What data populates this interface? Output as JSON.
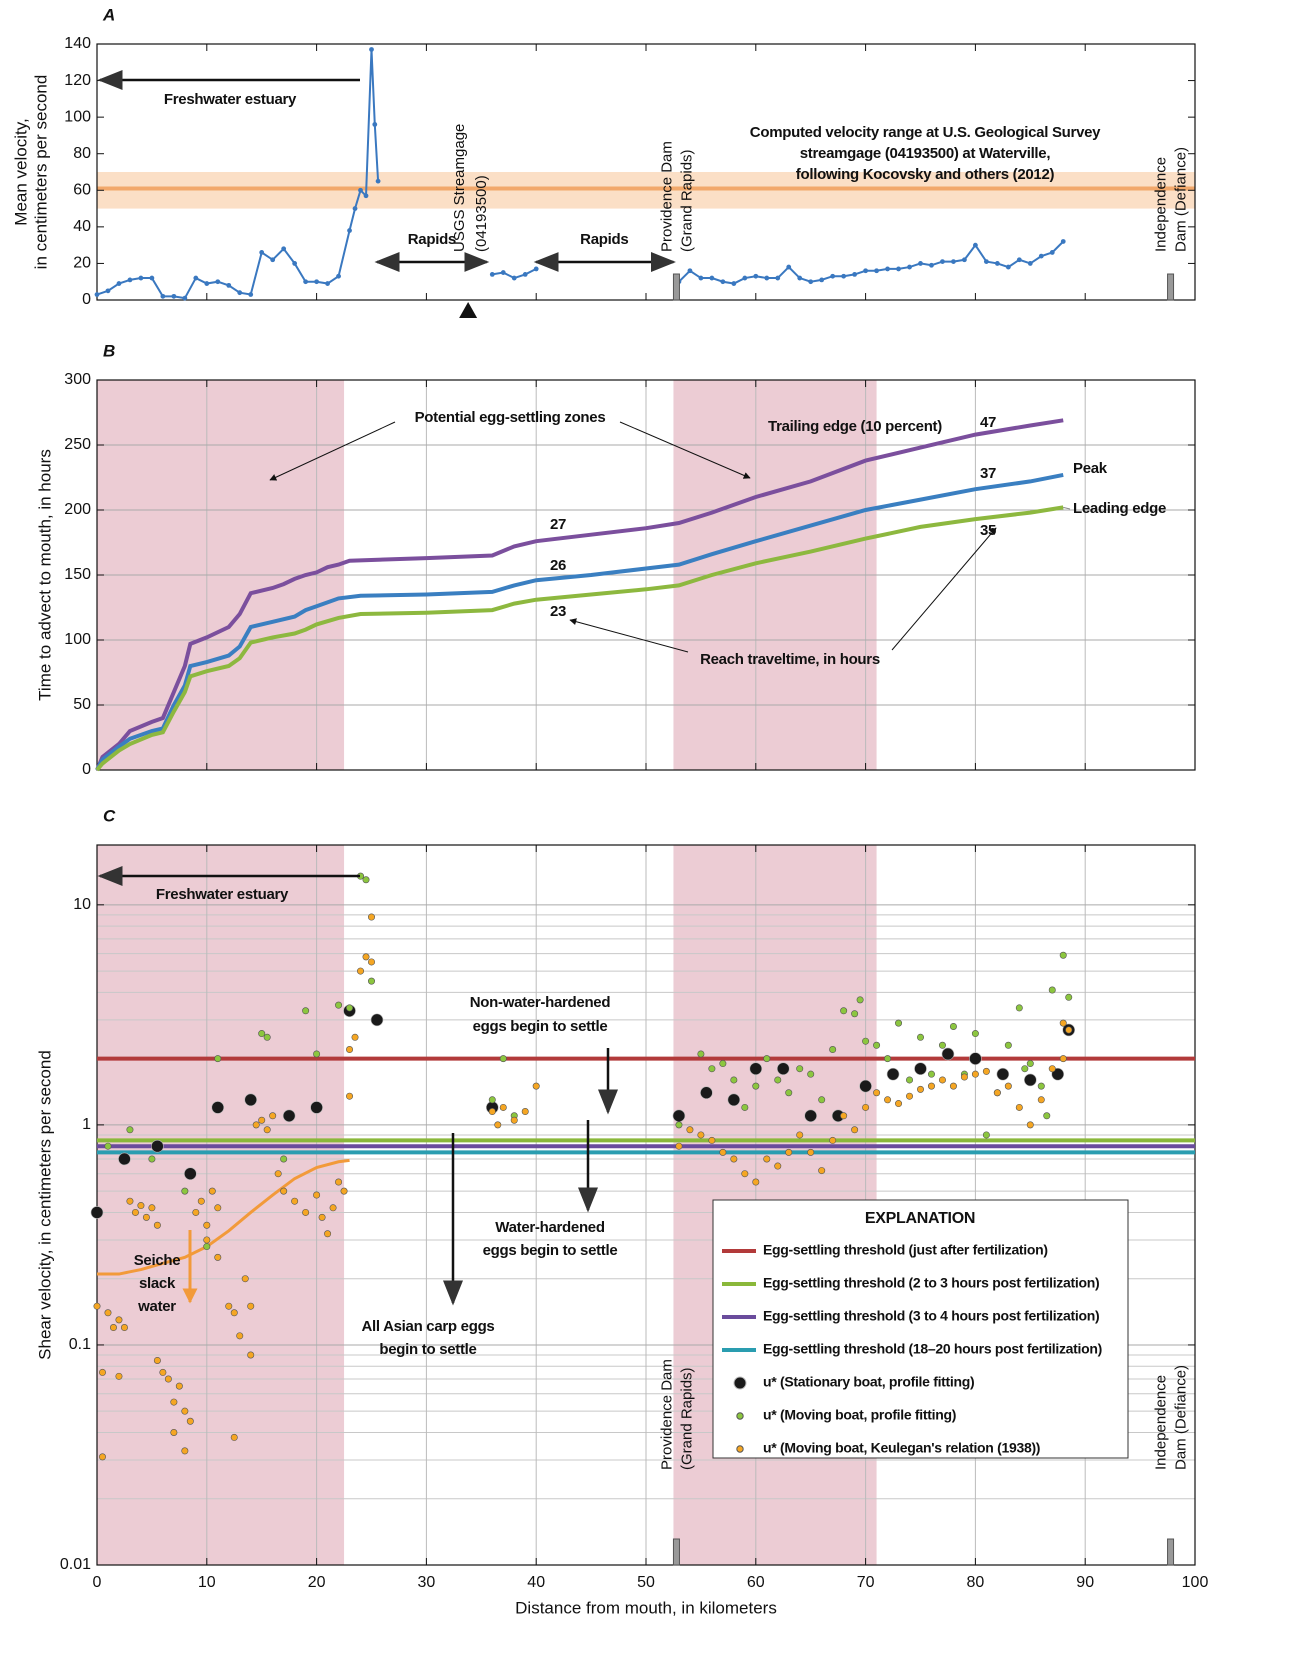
{
  "chart_data": [
    {
      "type": "line",
      "panel_label": "A",
      "ylabel": [
        "Mean velocity,",
        "in centimeters per second"
      ],
      "xlim": [
        0,
        100
      ],
      "xticks": [
        0,
        10,
        20,
        30,
        40,
        50,
        60,
        70,
        80,
        90,
        100
      ],
      "xtick_labels": false,
      "ylim": [
        0,
        140
      ],
      "yticks": [
        0,
        20,
        40,
        60,
        80,
        100,
        120,
        140
      ],
      "grid": false,
      "band": {
        "low": 50,
        "high": 70,
        "mid": 61,
        "color": "#f8c9a0",
        "mid_color": "#f2a86b"
      },
      "series": [
        {
          "name": "Mean velocity",
          "color": "#3a78c0",
          "x": [
            0,
            1,
            2,
            3,
            4,
            5,
            6,
            7,
            8,
            9,
            10,
            11,
            12,
            13,
            14,
            15,
            16,
            17,
            18,
            19,
            20,
            21,
            22,
            23,
            23.5,
            24,
            24.5,
            25,
            25.3,
            25.6,
            30,
            36,
            37,
            38,
            39,
            40,
            46,
            53,
            54,
            55,
            56,
            57,
            58,
            59,
            60,
            61,
            62,
            63,
            64,
            65,
            66,
            67,
            68,
            69,
            70,
            71,
            72,
            73,
            74,
            75,
            76,
            77,
            78,
            79,
            80,
            81,
            82,
            83,
            84,
            85,
            86,
            87,
            88
          ],
          "values": [
            3,
            5,
            9,
            11,
            12,
            12,
            2,
            2,
            1,
            12,
            9,
            10,
            8,
            4,
            3,
            26,
            22,
            28,
            20,
            10,
            10,
            9,
            13,
            38,
            50,
            60,
            57,
            137,
            96,
            65,
            null,
            14,
            15,
            12,
            14,
            17,
            null,
            10,
            16,
            12,
            12,
            10,
            9,
            12,
            13,
            12,
            12,
            18,
            12,
            10,
            11,
            13,
            13,
            14,
            16,
            16,
            17,
            17,
            18,
            20,
            19,
            21,
            21,
            22,
            30,
            21,
            20,
            18,
            22,
            20,
            24,
            26,
            32
          ]
        }
      ],
      "annotations": {
        "estuary": "Freshwater estuary",
        "rapids": [
          "Rapids",
          "Rapids"
        ],
        "gage": [
          "USGS Streamgage",
          "(04193500)"
        ],
        "gage_x": 33.8,
        "band_note": [
          "Computed velocity range at U.S. Geological Survey",
          "streamgage (04193500) at Waterville,",
          "following Kocovsky and others (2012)"
        ]
      },
      "dams": [
        {
          "lines": [
            "Providence Dam",
            "(Grand Rapids)"
          ],
          "x": 52.5
        },
        {
          "lines": [
            "Independence",
            "Dam (Defiance)"
          ],
          "x": 97.5
        }
      ]
    },
    {
      "type": "line",
      "panel_label": "B",
      "ylabel": [
        "Time to advect to mouth, in hours"
      ],
      "xlim": [
        0,
        100
      ],
      "xticks": [
        0,
        10,
        20,
        30,
        40,
        50,
        60,
        70,
        80,
        90,
        100
      ],
      "xtick_labels": false,
      "ylim": [
        0,
        300
      ],
      "yticks": [
        0,
        50,
        100,
        150,
        200,
        250,
        300
      ],
      "grid": true,
      "zones": [
        [
          0,
          22.5
        ],
        [
          52.5,
          71
        ]
      ],
      "zone_color": "#ecccd4",
      "zone_note": "Potential egg-settling zones",
      "series": [
        {
          "name": "Trailing edge (10 percent)",
          "color": "#7b4f9d",
          "x": [
            0,
            0.5,
            2,
            3,
            5,
            6,
            7,
            8,
            8.5,
            10,
            12,
            13,
            14,
            16,
            17,
            18,
            19,
            20,
            21,
            22,
            23,
            30,
            36,
            38,
            40,
            45,
            50,
            53,
            56,
            60,
            65,
            70,
            75,
            80,
            85,
            88
          ],
          "values": [
            0,
            10,
            20,
            30,
            37,
            40,
            60,
            80,
            97,
            102,
            110,
            120,
            136,
            140,
            143,
            147,
            150,
            152,
            156,
            158,
            161,
            163,
            165,
            172,
            176,
            181,
            186,
            190,
            198,
            210,
            222,
            238,
            248,
            258,
            265,
            269
          ]
        },
        {
          "name": "Peak",
          "color": "#3a7fc1",
          "x": [
            0,
            0.5,
            2,
            3,
            5,
            6,
            7,
            8,
            8.5,
            10,
            12,
            13,
            14,
            16,
            18,
            19,
            20,
            22,
            24,
            30,
            36,
            38,
            40,
            45,
            50,
            53,
            56,
            60,
            65,
            70,
            75,
            80,
            85,
            88
          ],
          "values": [
            0,
            8,
            18,
            24,
            30,
            32,
            50,
            65,
            80,
            83,
            88,
            95,
            110,
            114,
            118,
            123,
            126,
            132,
            134,
            135,
            137,
            142,
            146,
            150,
            155,
            158,
            166,
            176,
            188,
            200,
            208,
            216,
            222,
            227
          ]
        },
        {
          "name": "Leading edge",
          "color": "#8db83f",
          "x": [
            0,
            0.5,
            2,
            3,
            5,
            6,
            7,
            8,
            8.5,
            10,
            12,
            13,
            14,
            16,
            18,
            19,
            20,
            22,
            24,
            30,
            36,
            38,
            40,
            45,
            50,
            53,
            56,
            60,
            65,
            70,
            75,
            80,
            85,
            88
          ],
          "values": [
            0,
            5,
            15,
            20,
            27,
            29,
            45,
            60,
            72,
            76,
            80,
            86,
            98,
            102,
            105,
            108,
            112,
            117,
            120,
            121,
            123,
            128,
            131,
            135,
            139,
            142,
            150,
            159,
            168,
            178,
            187,
            193,
            198,
            202
          ]
        }
      ],
      "reach_times": [
        27,
        26,
        23,
        47,
        37,
        35
      ],
      "reach_note": "Reach traveltime, in hours"
    },
    {
      "type": "scatter",
      "panel_label": "C",
      "ylabel": [
        "Shear velocity, in centimeters per second"
      ],
      "xlabel": "Distance from mouth, in kilometers",
      "xlim": [
        0,
        100
      ],
      "xticks": [
        0,
        10,
        20,
        30,
        40,
        50,
        60,
        70,
        80,
        90,
        100
      ],
      "xtick_labels": true,
      "log_y": true,
      "ylim": [
        0.01,
        18.7
      ],
      "yticks": [
        0.01,
        0.1,
        1,
        10
      ],
      "yminorticks": [
        0.02,
        0.03,
        0.04,
        0.05,
        0.06,
        0.07,
        0.08,
        0.09,
        0.2,
        0.3,
        0.4,
        0.5,
        0.6,
        0.7,
        0.8,
        0.9,
        2,
        3,
        4,
        5,
        6,
        7,
        8,
        9
      ],
      "grid": true,
      "zones": [
        [
          0,
          22.5
        ],
        [
          52.5,
          71
        ]
      ],
      "zone_color": "#ecccd4",
      "legend_title": "EXPLANATION",
      "legend": "lower right",
      "series": [
        {
          "name": "Egg-settling threshold (just after fertilization)",
          "kind": "hline",
          "color": "#b23a3a",
          "values": [
            2
          ]
        },
        {
          "name": "Egg-settling threshold (2 to 3 hours post fertilization)",
          "kind": "hline",
          "color": "#8ab83a",
          "values": [
            0.85
          ]
        },
        {
          "name": "Egg-settling threshold (3 to 4 hours post fertilization)",
          "kind": "hline",
          "color": "#6a4c9c",
          "values": [
            0.8
          ]
        },
        {
          "name": "Egg-settling threshold (18–20 hours post fertilization)",
          "kind": "hline",
          "color": "#2a9db0",
          "values": [
            0.75
          ]
        },
        {
          "name": "u* (Stationary boat, profile fitting)",
          "kind": "point",
          "color": "#1a1a1a",
          "size": 6,
          "x": [
            0,
            2.5,
            5.5,
            8.5,
            11,
            14,
            17.5,
            20,
            23,
            25.5,
            36,
            53,
            55.5,
            58,
            60,
            62.5,
            65,
            67.5,
            70,
            72.5,
            75,
            77.5,
            80,
            82.5,
            85,
            87.5,
            88.5
          ],
          "values": [
            0.4,
            0.7,
            0.8,
            0.6,
            1.2,
            1.3,
            1.1,
            1.2,
            3.3,
            3,
            1.2,
            1.1,
            1.4,
            1.3,
            1.8,
            1.8,
            1.1,
            1.1,
            1.5,
            1.7,
            1.8,
            2.1,
            2,
            1.7,
            1.6,
            1.7,
            2.7
          ]
        },
        {
          "name": "u* (Moving boat, profile fitting)",
          "kind": "point",
          "color": "#8cc63f",
          "size": 3.2,
          "x": [
            1,
            3,
            5,
            8,
            10,
            11,
            15,
            15.5,
            17,
            19,
            20,
            22,
            23,
            24,
            24.5,
            25,
            37,
            36,
            38,
            53,
            55,
            56,
            57,
            58,
            59,
            60,
            61,
            62,
            63,
            64,
            65,
            66,
            67,
            68,
            69,
            69.5,
            70,
            71,
            72,
            73,
            74,
            75,
            76,
            77,
            78,
            79,
            80,
            81,
            82,
            83,
            84,
            85,
            86,
            87,
            88,
            88.5,
            86.5,
            84.5
          ],
          "values": [
            0.8,
            0.95,
            0.7,
            0.5,
            0.28,
            2,
            2.6,
            2.5,
            0.7,
            3.3,
            2.1,
            3.5,
            3.4,
            13.5,
            13,
            4.5,
            2,
            1.3,
            1.1,
            1,
            2.1,
            1.8,
            1.9,
            1.6,
            1.2,
            1.5,
            2,
            1.6,
            1.4,
            1.8,
            1.7,
            1.3,
            2.2,
            3.3,
            3.2,
            3.7,
            2.4,
            2.3,
            2,
            2.9,
            1.6,
            2.5,
            1.7,
            2.3,
            2.8,
            1.7,
            2.6,
            0.9,
            1.4,
            2.3,
            3.4,
            1.9,
            1.5,
            4.1,
            5.9,
            3.8,
            1.1,
            1.8
          ]
        },
        {
          "name": "u* (Moving boat, Keulegan's relation (1938))",
          "kind": "point",
          "color": "#f5a623",
          "size": 3.2,
          "x": [
            0,
            0.5,
            0.5,
            1,
            1.5,
            2,
            2,
            2.5,
            3,
            3.5,
            4,
            4.5,
            5,
            5.5,
            5.5,
            6,
            6.5,
            7,
            7,
            7.5,
            8,
            8,
            8.5,
            9,
            9.5,
            10,
            10,
            10.5,
            11,
            11,
            12,
            12.5,
            12.5,
            13,
            13.5,
            14,
            14,
            14.5,
            15,
            15.5,
            16,
            16.5,
            17,
            18,
            19,
            20,
            20.5,
            21,
            21.5,
            22,
            22.5,
            23,
            23,
            23.5,
            24,
            24.5,
            25,
            25,
            36,
            36.5,
            37,
            38,
            39,
            40,
            53,
            54,
            55,
            56,
            57,
            58,
            59,
            60,
            61,
            62,
            63,
            64,
            65,
            66,
            67,
            68,
            69,
            70,
            71,
            72,
            73,
            74,
            75,
            76,
            77,
            78,
            79,
            80,
            81,
            82,
            83,
            84,
            85,
            86,
            87,
            88,
            88.5,
            88
          ],
          "values": [
            0.15,
            0.075,
            0.031,
            0.14,
            0.12,
            0.072,
            0.13,
            0.12,
            0.45,
            0.4,
            0.43,
            0.38,
            0.42,
            0.35,
            0.085,
            0.075,
            0.07,
            0.055,
            0.04,
            0.065,
            0.05,
            0.033,
            0.045,
            0.4,
            0.45,
            0.35,
            0.3,
            0.5,
            0.25,
            0.42,
            0.15,
            0.14,
            0.038,
            0.11,
            0.2,
            0.15,
            0.09,
            1,
            1.05,
            0.95,
            1.1,
            0.6,
            0.5,
            0.45,
            0.4,
            0.48,
            0.38,
            0.32,
            0.42,
            0.55,
            0.5,
            1.35,
            2.2,
            2.5,
            5,
            5.8,
            5.5,
            8.8,
            1.15,
            1,
            1.2,
            1.05,
            1.15,
            1.5,
            0.8,
            0.95,
            0.9,
            0.85,
            0.75,
            0.7,
            0.6,
            0.55,
            0.7,
            0.65,
            0.75,
            0.9,
            0.75,
            0.62,
            0.85,
            1.1,
            0.95,
            1.2,
            1.4,
            1.3,
            1.25,
            1.35,
            1.45,
            1.5,
            1.6,
            1.5,
            1.65,
            1.7,
            1.75,
            1.4,
            1.5,
            1.2,
            1,
            1.3,
            1.8,
            2,
            2.7,
            2.9
          ]
        }
      ],
      "seiche_curve": {
        "color": "#f29a3a",
        "x": [
          0,
          2,
          4,
          6,
          8,
          10,
          12,
          14,
          16,
          18,
          20,
          22,
          23
        ],
        "values": [
          0.21,
          0.21,
          0.22,
          0.235,
          0.25,
          0.28,
          0.33,
          0.4,
          0.48,
          0.57,
          0.64,
          0.68,
          0.69
        ]
      },
      "annotations": {
        "estuary": "Freshwater estuary",
        "non_hardened": [
          "Non-water-hardened",
          "eggs begin to settle"
        ],
        "hardened": [
          "Water-hardened",
          "eggs begin to settle"
        ],
        "all_eggs": [
          "All Asian carp eggs",
          "begin to settle"
        ],
        "seiche": [
          "Seiche",
          "slack",
          "water"
        ]
      },
      "dams": [
        {
          "lines": [
            "Providence Dam",
            "(Grand Rapids)"
          ],
          "x": 52.5
        },
        {
          "lines": [
            "Independence",
            "Dam (Defiance)"
          ],
          "x": 97.5
        }
      ]
    }
  ]
}
